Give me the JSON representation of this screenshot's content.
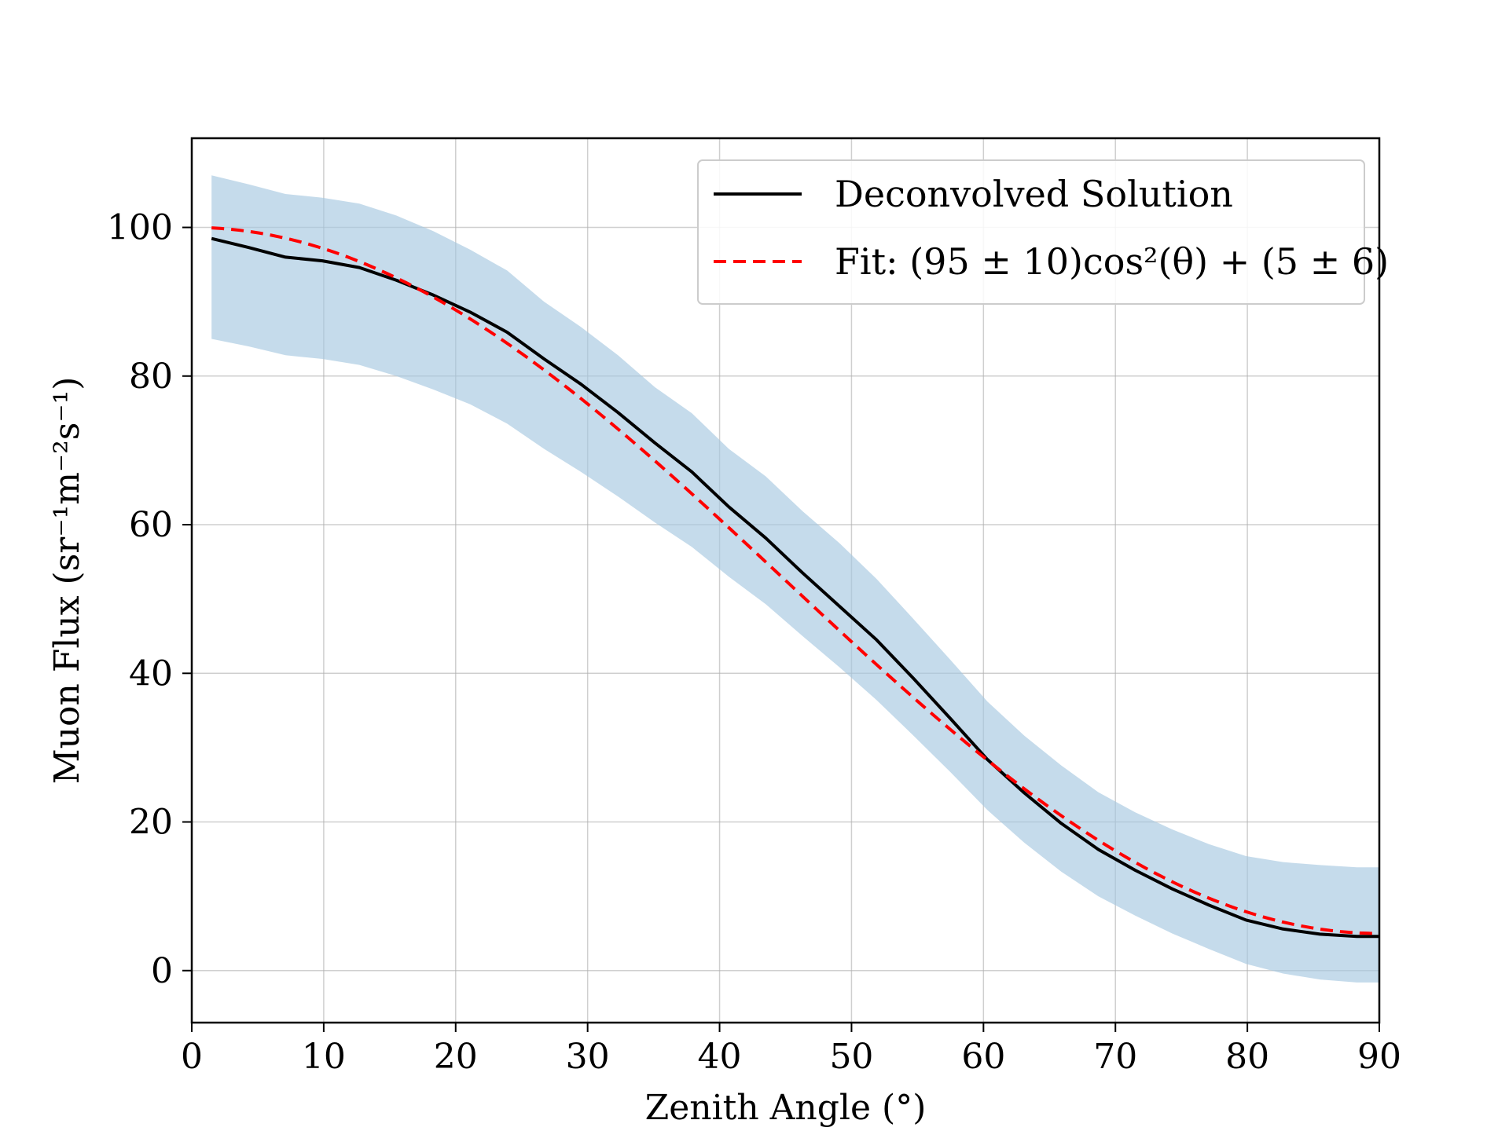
{
  "chart_data": {
    "type": "line",
    "title": "",
    "xlabel": "Zenith Angle (°)",
    "ylabel": "Muon Flux (sr⁻¹m⁻²s⁻¹)",
    "xlim": [
      0,
      90
    ],
    "ylim": [
      -7,
      112
    ],
    "xticks": [
      0,
      10,
      20,
      30,
      40,
      50,
      60,
      70,
      80,
      90
    ],
    "yticks": [
      0,
      20,
      40,
      60,
      80,
      100
    ],
    "grid": true,
    "legend_position": "top-right",
    "x": [
      1.5,
      4.3,
      7.1,
      9.9,
      12.7,
      15.5,
      18.3,
      21.1,
      23.9,
      26.7,
      29.5,
      32.3,
      35.1,
      37.9,
      40.7,
      43.5,
      46.3,
      49.1,
      51.9,
      54.7,
      57.5,
      60.3,
      63.1,
      65.9,
      68.7,
      71.5,
      74.3,
      77.1,
      79.9,
      82.7,
      85.5,
      88.3,
      90
    ],
    "series": [
      {
        "name": "Deconvolved Solution",
        "color": "#000000",
        "style": "solid",
        "values": [
          98.5,
          97.3,
          96.0,
          95.5,
          94.6,
          92.9,
          90.9,
          88.6,
          85.9,
          82.3,
          78.9,
          75.1,
          71.0,
          67.1,
          62.4,
          58.2,
          53.5,
          49.0,
          44.5,
          39.3,
          33.9,
          28.4,
          23.9,
          19.8,
          16.3,
          13.5,
          11.0,
          8.8,
          6.8,
          5.6,
          4.9,
          4.6,
          4.6
        ],
        "band_lower": [
          85.0,
          84.0,
          82.8,
          82.3,
          81.5,
          80.0,
          78.2,
          76.2,
          73.6,
          70.2,
          67.1,
          63.8,
          60.3,
          57.0,
          53.0,
          49.3,
          45.0,
          40.8,
          36.4,
          31.6,
          26.7,
          21.6,
          17.2,
          13.3,
          10.0,
          7.4,
          5.0,
          2.9,
          0.9,
          -0.4,
          -1.2,
          -1.6,
          -1.6
        ],
        "band_upper": [
          107.0,
          105.8,
          104.5,
          104.0,
          103.2,
          101.6,
          99.5,
          97.0,
          94.2,
          90.0,
          86.6,
          82.8,
          78.5,
          75.0,
          70.2,
          66.5,
          61.8,
          57.5,
          52.7,
          47.3,
          41.8,
          36.2,
          31.6,
          27.6,
          24.0,
          21.3,
          19.0,
          17.0,
          15.4,
          14.6,
          14.2,
          13.9,
          13.9
        ],
        "band_color": "#a6c7e1"
      },
      {
        "name": "Fit: (95 ± 10)cos²(θ) + (5 ± 6)",
        "color": "#ff0000",
        "style": "dashed",
        "model": {
          "A": 95,
          "B": 5
        }
      }
    ]
  }
}
